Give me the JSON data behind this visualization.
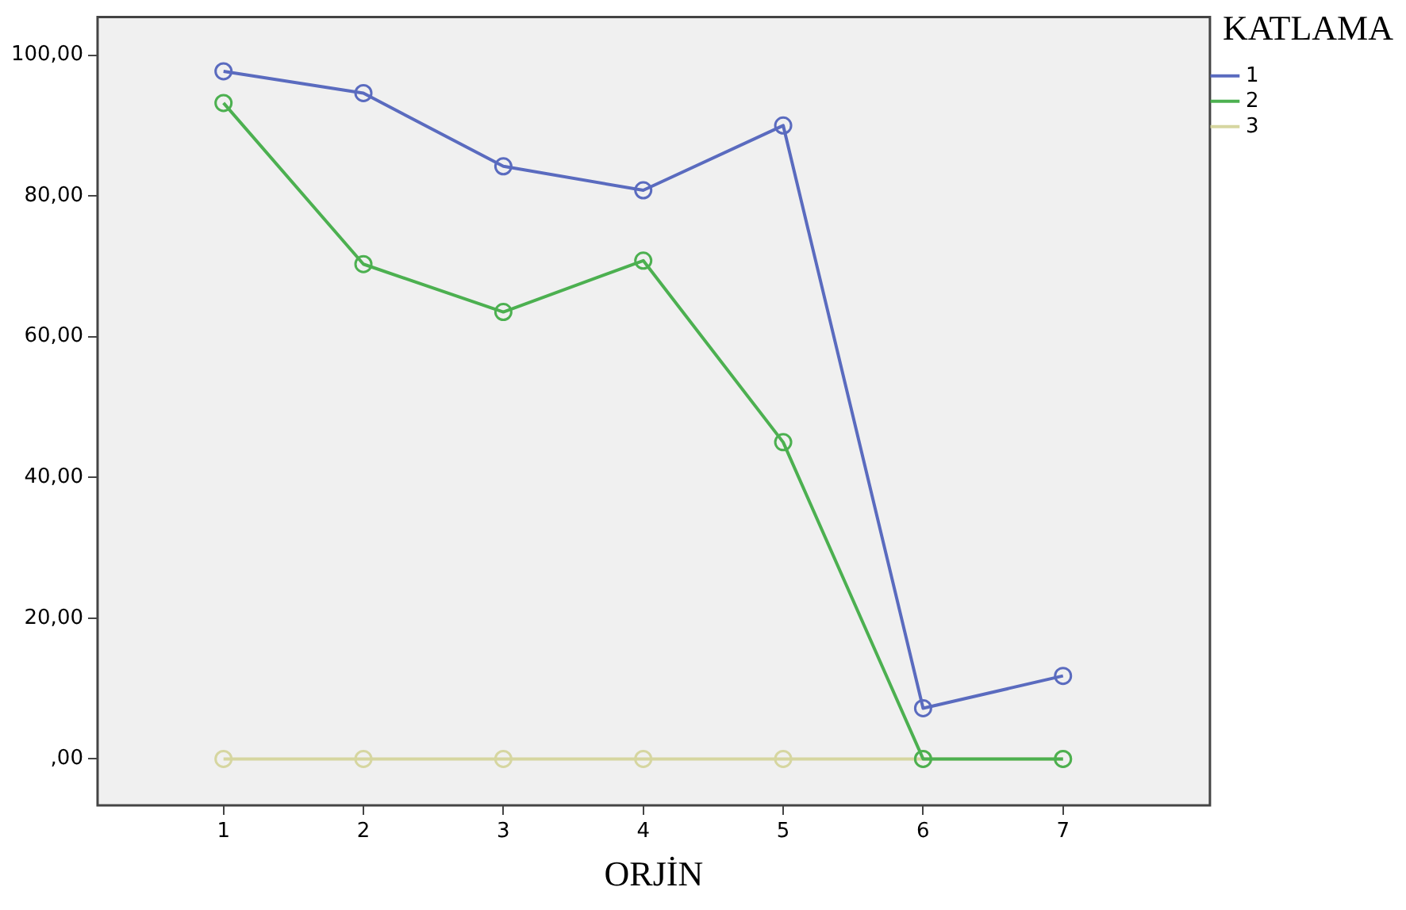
{
  "chart_data": {
    "type": "line",
    "xlabel": "ORJİN",
    "legend_title": "KATLAMA",
    "x": [
      1,
      2,
      3,
      4,
      5,
      6,
      7
    ],
    "series": [
      {
        "name": "1",
        "color": "#5a6bbf",
        "values": [
          97.7,
          94.6,
          84.2,
          80.8,
          90.0,
          7.2,
          11.8
        ]
      },
      {
        "name": "2",
        "color": "#4cb050",
        "values": [
          93.2,
          70.3,
          63.5,
          70.8,
          45.0,
          0,
          0
        ]
      },
      {
        "name": "3",
        "color": "#d6d6a0",
        "values": [
          0,
          0,
          0,
          0,
          0,
          0,
          0
        ]
      }
    ],
    "xlim": [
      0.1,
      8.05
    ],
    "xticks": [
      1,
      2,
      3,
      4,
      5,
      6,
      7
    ],
    "ylim": [
      -6.6,
      105.4
    ],
    "yticks": [
      {
        "value": 0,
        "label": ",00"
      },
      {
        "value": 20,
        "label": "20,00"
      },
      {
        "value": 40,
        "label": "40,00"
      },
      {
        "value": 60,
        "label": "60,00"
      },
      {
        "value": 80,
        "label": "80,00"
      },
      {
        "value": 100,
        "label": "100,00"
      }
    ],
    "legend": "top right",
    "grid": false,
    "marker": "circle",
    "line_style": "solid"
  }
}
